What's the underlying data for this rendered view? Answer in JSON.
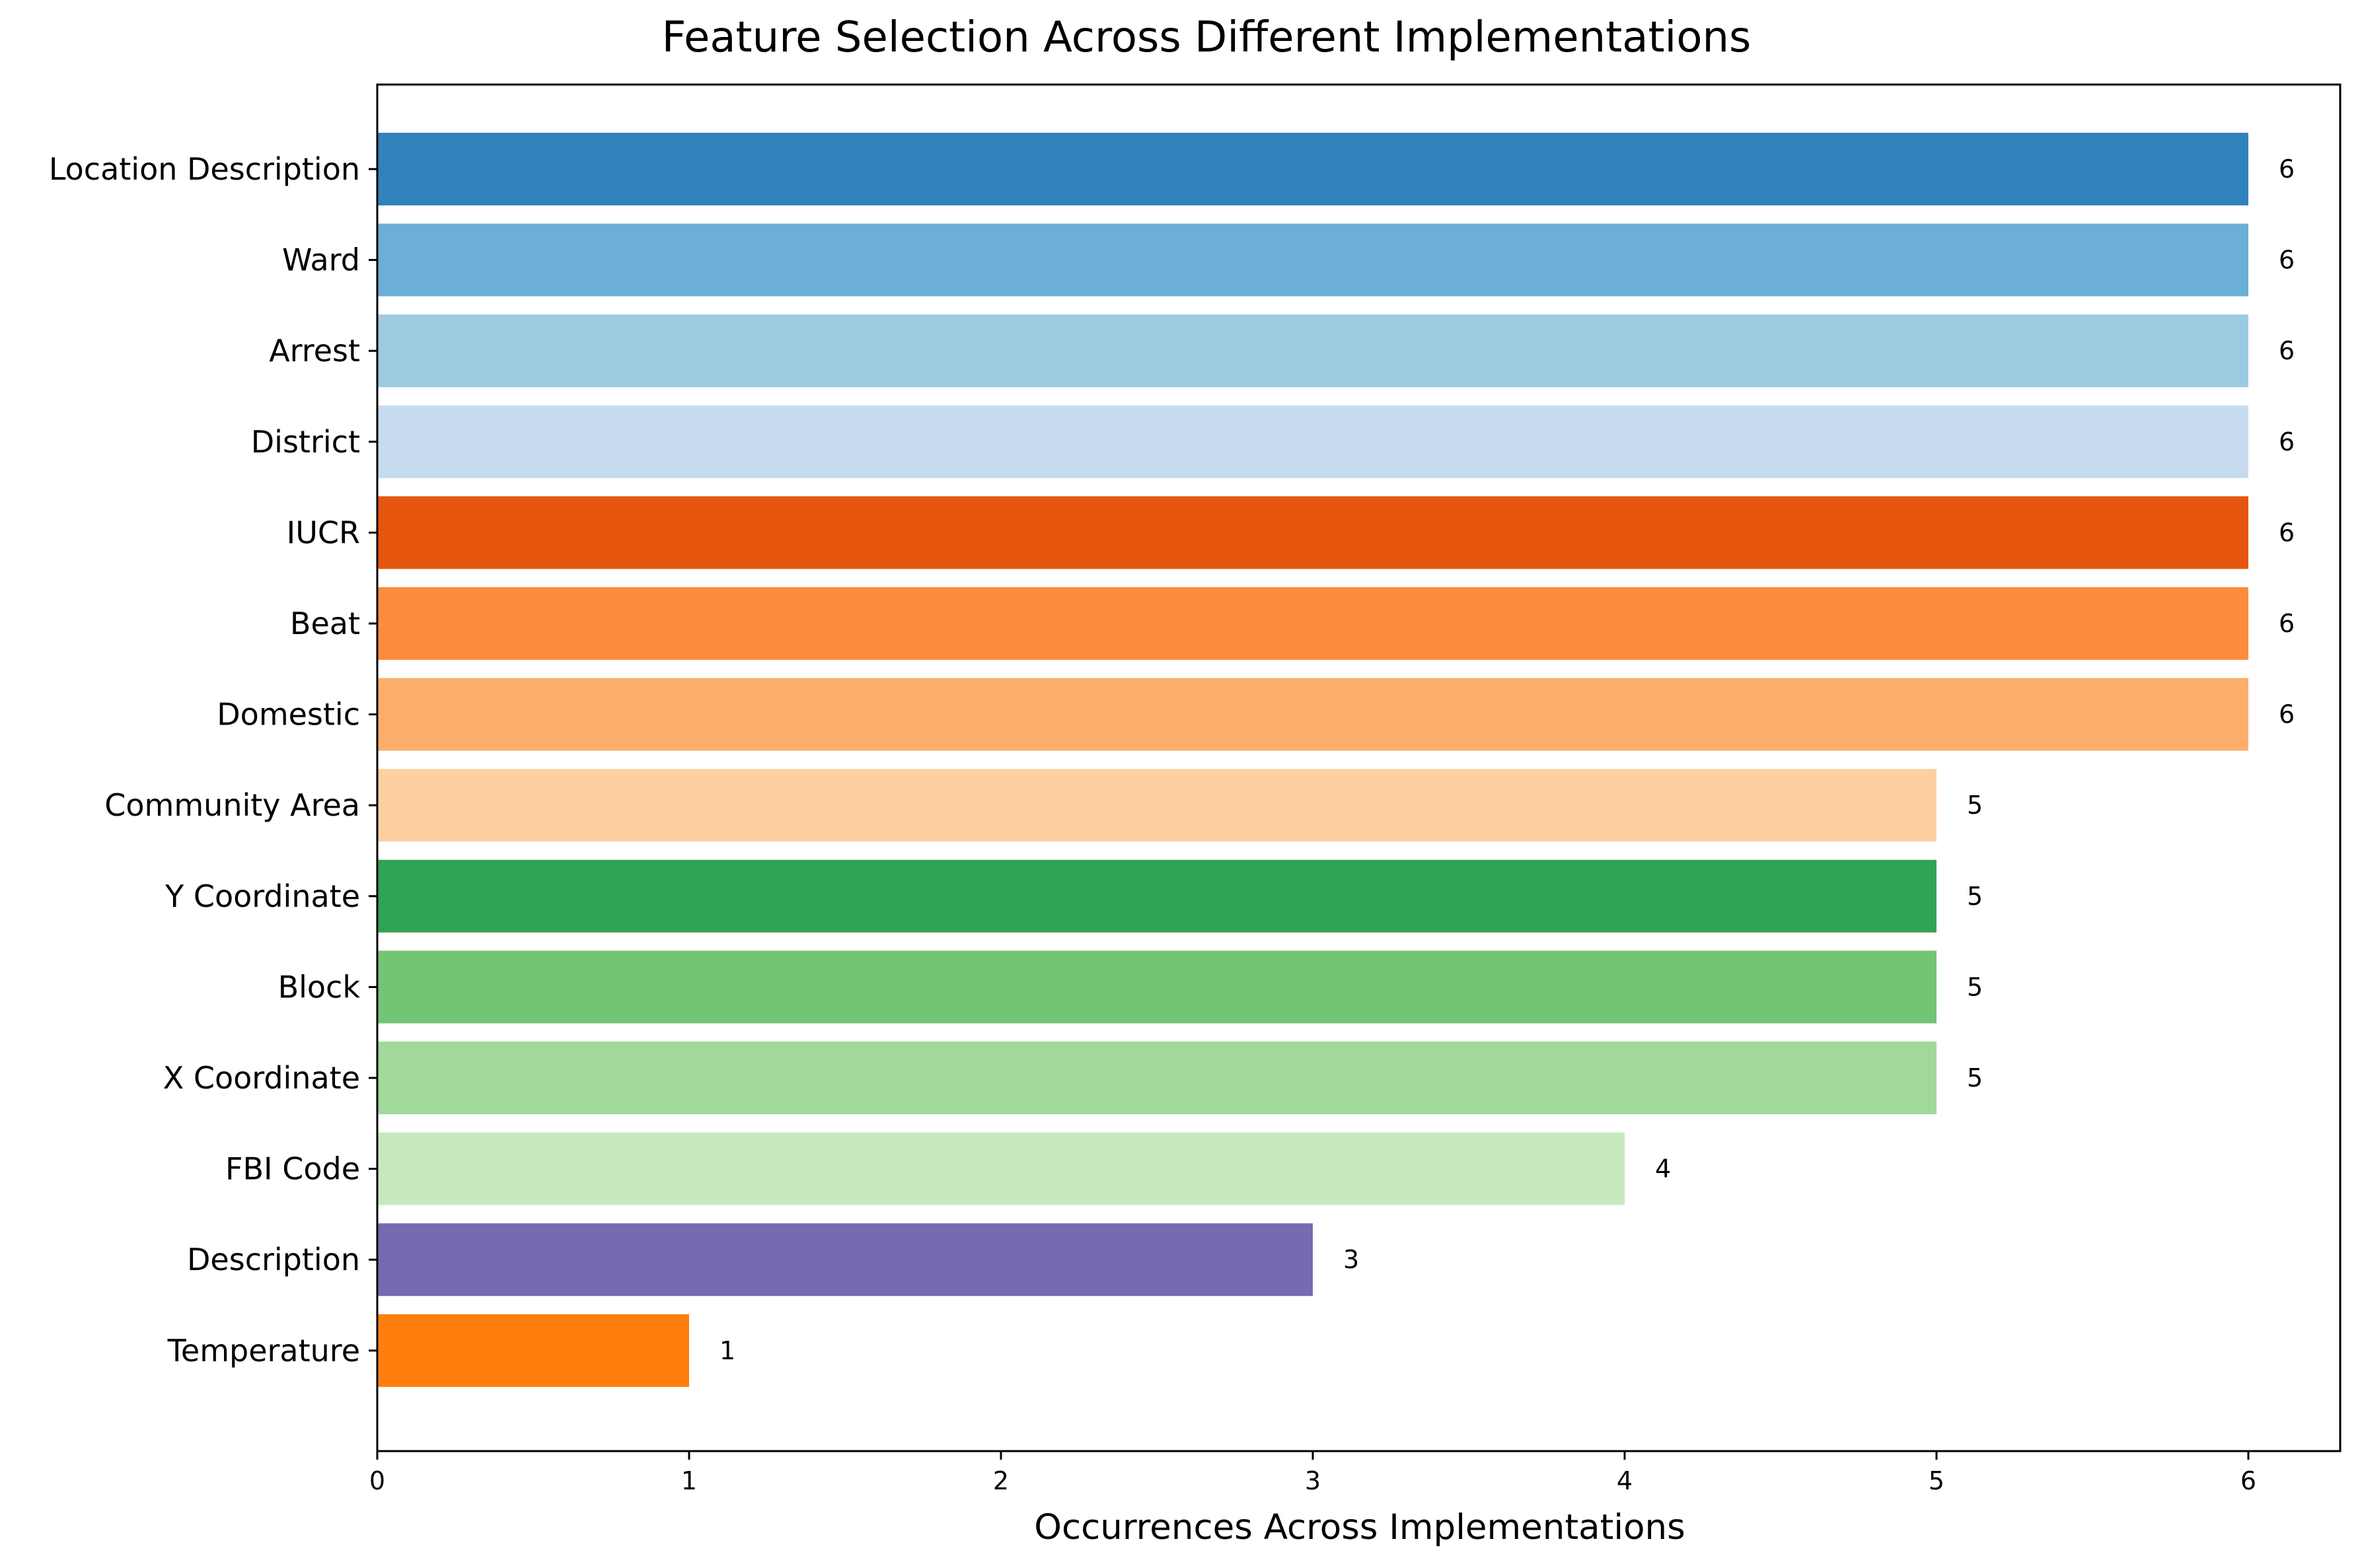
{
  "chart_data": {
    "type": "bar",
    "orientation": "horizontal",
    "title": "Feature Selection Across Different Implementations",
    "xlabel": "Occurrences Across Implementations",
    "ylabel": "",
    "xlim": [
      0,
      6.3
    ],
    "xticks": [
      "0",
      "1",
      "2",
      "3",
      "4",
      "5",
      "6"
    ],
    "grid": false,
    "categories": [
      "Location Description",
      "Ward",
      "Arrest",
      "District",
      "IUCR",
      "Beat",
      "Domestic",
      "Community Area",
      "Y Coordinate",
      "Block",
      "X Coordinate",
      "FBI Code",
      "Description",
      "Temperature"
    ],
    "values": [
      6,
      6,
      6,
      6,
      6,
      6,
      6,
      5,
      5,
      5,
      5,
      4,
      3,
      1
    ],
    "data_labels": [
      "6",
      "6",
      "6",
      "6",
      "6",
      "6",
      "6",
      "5",
      "5",
      "5",
      "5",
      "4",
      "3",
      "1"
    ],
    "colors": [
      "#3182bd",
      "#6baed6",
      "#9ecae1",
      "#c6dbef",
      "#e6550d",
      "#fd8d3c",
      "#fdae6b",
      "#fdd0a2",
      "#31a354",
      "#74c476",
      "#a1d99b",
      "#c7e9c0",
      "#756bb1",
      "#ff7f0e"
    ]
  }
}
